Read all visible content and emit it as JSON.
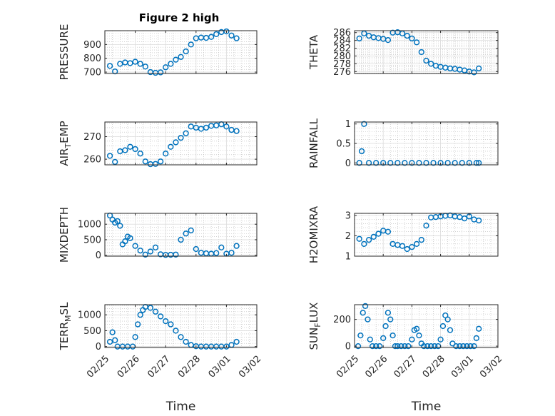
{
  "figure": {
    "title": "Figure 2 high",
    "marker_color": "#0072BD",
    "axis_color": "#262626",
    "grid_color": "#b8b8b8"
  },
  "chart_data": [
    {
      "type": "scatter",
      "ylabel": "PRESSURE",
      "ylim": [
        690,
        1000
      ],
      "yticks": [
        700,
        800,
        900
      ],
      "xlabel": "",
      "x": [
        "02/25 04:00",
        "02/25 08:00",
        "02/25 12:00",
        "02/25 16:00",
        "02/25 20:00",
        "02/26 00:00",
        "02/26 04:00",
        "02/26 08:00",
        "02/26 12:00",
        "02/26 16:00",
        "02/26 20:00",
        "02/27 00:00",
        "02/27 04:00",
        "02/27 08:00",
        "02/27 12:00",
        "02/27 16:00",
        "02/27 20:00",
        "02/28 00:00",
        "02/28 04:00",
        "02/28 08:00",
        "02/28 12:00",
        "02/28 16:00",
        "02/28 20:00",
        "03/01 00:00",
        "03/01 04:00",
        "03/01 08:00"
      ],
      "y": [
        745,
        705,
        760,
        770,
        765,
        775,
        760,
        740,
        700,
        695,
        698,
        735,
        760,
        790,
        810,
        850,
        900,
        945,
        950,
        948,
        955,
        975,
        990,
        995,
        965,
        945
      ]
    },
    {
      "type": "scatter",
      "ylabel": "THETA",
      "ylim": [
        275.5,
        286.5
      ],
      "yticks": [
        276,
        278,
        280,
        282,
        284,
        286
      ],
      "xlabel": "",
      "x": [
        "02/25 04:00",
        "02/25 08:00",
        "02/25 12:00",
        "02/25 16:00",
        "02/25 20:00",
        "02/26 00:00",
        "02/26 04:00",
        "02/26 08:00",
        "02/26 12:00",
        "02/26 16:00",
        "02/26 20:00",
        "02/27 00:00",
        "02/27 04:00",
        "02/27 08:00",
        "02/27 12:00",
        "02/27 16:00",
        "02/27 20:00",
        "02/28 00:00",
        "02/28 04:00",
        "02/28 08:00",
        "02/28 12:00",
        "02/28 16:00",
        "02/28 20:00",
        "03/01 00:00",
        "03/01 04:00",
        "03/01 08:00"
      ],
      "y": [
        284.5,
        285.8,
        285.2,
        284.8,
        284.6,
        284.4,
        284.1,
        286.0,
        286.1,
        285.8,
        285.2,
        284.5,
        283.5,
        281.0,
        278.8,
        278.0,
        277.5,
        277.2,
        277.0,
        276.8,
        276.7,
        276.5,
        276.3,
        276.0,
        275.8,
        276.8
      ]
    },
    {
      "type": "scatter",
      "ylabel": "AIR_TEMP",
      "ylim": [
        257.5,
        276.5
      ],
      "yticks": [
        260,
        270
      ],
      "xlabel": "",
      "x": [
        "02/25 04:00",
        "02/25 08:00",
        "02/25 12:00",
        "02/25 16:00",
        "02/25 20:00",
        "02/26 00:00",
        "02/26 04:00",
        "02/26 08:00",
        "02/26 12:00",
        "02/26 16:00",
        "02/26 20:00",
        "02/27 00:00",
        "02/27 04:00",
        "02/27 08:00",
        "02/27 12:00",
        "02/27 16:00",
        "02/27 20:00",
        "02/28 00:00",
        "02/28 04:00",
        "02/28 08:00",
        "02/28 12:00",
        "02/28 16:00",
        "02/28 20:00",
        "03/01 00:00",
        "03/01 04:00",
        "03/01 08:00"
      ],
      "y": [
        261.5,
        258.8,
        263.5,
        264.0,
        265.5,
        264.5,
        262.5,
        259.0,
        257.8,
        257.9,
        259.0,
        262.5,
        265.5,
        267.5,
        269.5,
        271.5,
        274.5,
        274.0,
        273.5,
        274.0,
        274.8,
        275.0,
        275.5,
        274.5,
        273.0,
        272.5
      ]
    },
    {
      "type": "scatter",
      "ylabel": "RAINFALL",
      "ylim": [
        -0.05,
        1.05
      ],
      "yticks": [
        0,
        0.5,
        1
      ],
      "xlabel": "",
      "x": [
        "02/25 04:00",
        "02/25 06:00",
        "02/25 08:00",
        "02/25 12:00",
        "02/25 18:00",
        "02/26 00:00",
        "02/26 06:00",
        "02/26 12:00",
        "02/26 18:00",
        "02/27 00:00",
        "02/27 06:00",
        "02/27 12:00",
        "02/27 18:00",
        "02/28 00:00",
        "02/28 06:00",
        "02/28 12:00",
        "02/28 18:00",
        "03/01 00:00",
        "03/01 06:00",
        "03/01 08:00"
      ],
      "y": [
        0,
        0.3,
        1.0,
        0,
        0,
        0,
        0,
        0,
        0,
        0,
        0,
        0,
        0,
        0,
        0,
        0,
        0,
        0,
        0,
        0
      ]
    },
    {
      "type": "scatter",
      "ylabel": "MIXDEPTH",
      "ylim": [
        -30,
        1350
      ],
      "yticks": [
        0,
        500,
        1000
      ],
      "xlabel": "",
      "x": [
        "02/25 04:00",
        "02/25 06:00",
        "02/25 08:00",
        "02/25 10:00",
        "02/25 12:00",
        "02/25 14:00",
        "02/25 16:00",
        "02/25 18:00",
        "02/25 20:00",
        "02/26 00:00",
        "02/26 04:00",
        "02/26 08:00",
        "02/26 12:00",
        "02/26 16:00",
        "02/26 20:00",
        "02/27 00:00",
        "02/27 04:00",
        "02/27 08:00",
        "02/27 12:00",
        "02/27 16:00",
        "02/27 20:00",
        "02/28 00:00",
        "02/28 04:00",
        "02/28 08:00",
        "02/28 12:00",
        "02/28 16:00",
        "02/28 20:00",
        "03/01 00:00",
        "03/01 04:00",
        "03/01 08:00"
      ],
      "y": [
        1280,
        1150,
        1050,
        1100,
        950,
        350,
        450,
        600,
        550,
        300,
        150,
        20,
        120,
        250,
        30,
        10,
        15,
        20,
        500,
        700,
        800,
        200,
        80,
        60,
        50,
        70,
        250,
        50,
        80,
        300
      ]
    },
    {
      "type": "scatter",
      "ylabel": "H2OMIXRA",
      "ylim": [
        1,
        3.1
      ],
      "yticks": [
        1,
        2,
        3
      ],
      "xlabel": "",
      "x": [
        "02/25 04:00",
        "02/25 08:00",
        "02/25 12:00",
        "02/25 16:00",
        "02/25 20:00",
        "02/26 00:00",
        "02/26 04:00",
        "02/26 08:00",
        "02/26 12:00",
        "02/26 16:00",
        "02/26 20:00",
        "02/27 00:00",
        "02/27 04:00",
        "02/27 08:00",
        "02/27 12:00",
        "02/27 16:00",
        "02/27 20:00",
        "02/28 00:00",
        "02/28 04:00",
        "02/28 08:00",
        "02/28 12:00",
        "02/28 16:00",
        "02/28 20:00",
        "03/01 00:00",
        "03/01 04:00",
        "03/01 08:00"
      ],
      "y": [
        1.85,
        1.6,
        1.8,
        1.95,
        2.1,
        2.25,
        2.2,
        1.6,
        1.55,
        1.5,
        1.35,
        1.45,
        1.6,
        1.8,
        2.5,
        2.9,
        2.92,
        2.95,
        2.98,
        3.0,
        2.95,
        2.92,
        2.85,
        2.95,
        2.8,
        2.75
      ]
    },
    {
      "type": "scatter",
      "ylabel": "TERR_MSL",
      "ylim": [
        -30,
        1320
      ],
      "yticks": [
        0,
        500,
        1000
      ],
      "xlabel": "Time",
      "xticks": [
        "02/25",
        "02/26",
        "02/27",
        "02/28",
        "03/01",
        "03/02"
      ],
      "x": [
        "02/25 04:00",
        "02/25 06:00",
        "02/25 08:00",
        "02/25 10:00",
        "02/25 14:00",
        "02/25 18:00",
        "02/25 22:00",
        "02/26 00:00",
        "02/26 02:00",
        "02/26 04:00",
        "02/26 06:00",
        "02/26 08:00",
        "02/26 12:00",
        "02/26 16:00",
        "02/26 20:00",
        "02/27 00:00",
        "02/27 04:00",
        "02/27 08:00",
        "02/27 12:00",
        "02/27 16:00",
        "02/27 20:00",
        "02/28 00:00",
        "02/28 04:00",
        "02/28 08:00",
        "02/28 12:00",
        "02/28 16:00",
        "02/28 20:00",
        "03/01 00:00",
        "03/01 04:00",
        "03/01 08:00"
      ],
      "y": [
        150,
        450,
        200,
        0,
        0,
        0,
        0,
        300,
        700,
        1000,
        1150,
        1250,
        1220,
        1100,
        950,
        800,
        700,
        500,
        300,
        150,
        50,
        10,
        0,
        0,
        0,
        0,
        0,
        0,
        50,
        150
      ]
    },
    {
      "type": "scatter",
      "ylabel": "SUN_FLUX",
      "ylim": [
        -10,
        310
      ],
      "yticks": [
        0,
        200
      ],
      "xlabel": "Time",
      "xticks": [
        "02/25",
        "02/26",
        "02/27",
        "02/28",
        "03/01",
        "03/02"
      ],
      "x": [
        "02/25 03:00",
        "02/25 05:00",
        "02/25 07:00",
        "02/25 09:00",
        "02/25 11:00",
        "02/25 13:00",
        "02/25 15:00",
        "02/25 18:00",
        "02/25 21:00",
        "02/26 00:00",
        "02/26 02:00",
        "02/26 04:00",
        "02/26 06:00",
        "02/26 08:00",
        "02/26 10:00",
        "02/26 12:00",
        "02/26 15:00",
        "02/26 18:00",
        "02/26 21:00",
        "02/27 00:00",
        "02/27 02:00",
        "02/27 04:00",
        "02/27 06:00",
        "02/27 08:00",
        "02/27 10:00",
        "02/27 13:00",
        "02/27 16:00",
        "02/27 19:00",
        "02/27 22:00",
        "02/28 00:00",
        "02/28 02:00",
        "02/28 04:00",
        "02/28 06:00",
        "02/28 08:00",
        "02/28 10:00",
        "02/28 13:00",
        "02/28 16:00",
        "02/28 19:00",
        "02/28 22:00",
        "03/01 01:00",
        "03/01 04:00",
        "03/01 06:00",
        "03/01 08:00"
      ],
      "y": [
        0,
        80,
        250,
        300,
        200,
        50,
        0,
        0,
        0,
        60,
        150,
        250,
        200,
        80,
        0,
        0,
        0,
        0,
        0,
        50,
        120,
        130,
        80,
        20,
        0,
        0,
        0,
        0,
        0,
        50,
        150,
        230,
        200,
        120,
        20,
        0,
        0,
        0,
        0,
        0,
        0,
        60,
        130
      ]
    }
  ]
}
